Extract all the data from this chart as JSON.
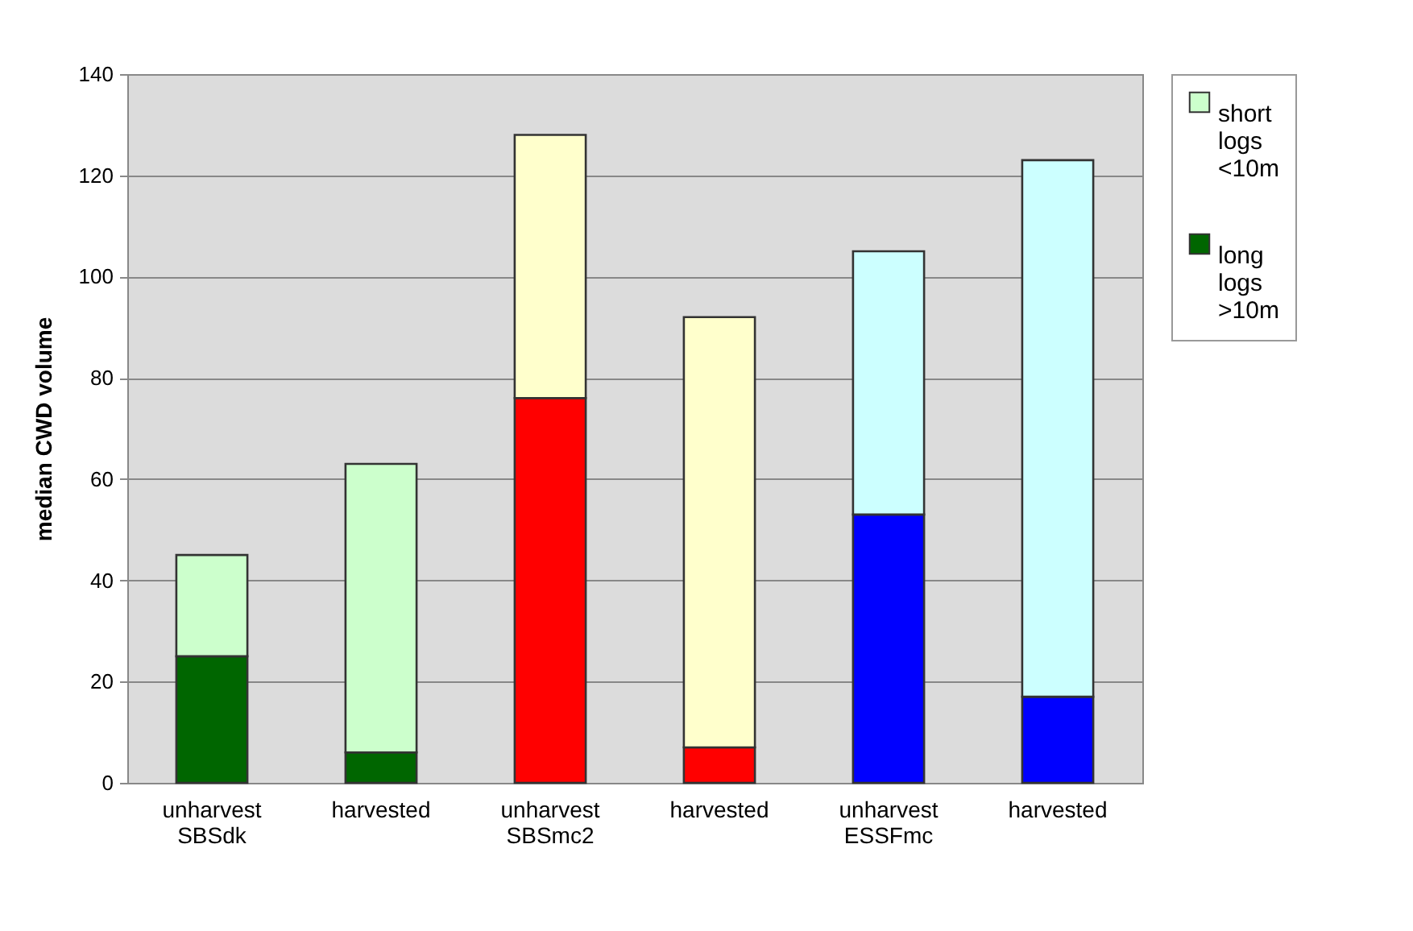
{
  "chart_data": {
    "type": "bar",
    "stacked": true,
    "ylabel": "median CWD volume",
    "categories": [
      "unharvest SBSdk",
      "harvested",
      "unharvest SBSmc2",
      "harvested",
      "unharvest ESSFmc",
      "harvested"
    ],
    "series": [
      {
        "name": "long logs >10m",
        "color": "#006600",
        "colors": [
          "#006600",
          "#006600",
          "#ff0000",
          "#ff0000",
          "#0000ff",
          "#0000ff"
        ],
        "values": [
          25,
          6,
          76,
          7,
          53,
          17
        ]
      },
      {
        "name": "short logs <10m",
        "color": "#ccffcc",
        "colors": [
          "#ccffcc",
          "#ccffcc",
          "#ffffcc",
          "#ffffcc",
          "#ccffff",
          "#ccffff"
        ],
        "values": [
          20,
          57,
          52,
          85,
          52,
          106
        ]
      }
    ],
    "ylim": [
      0,
      140
    ],
    "yticks": [
      0,
      20,
      40,
      60,
      80,
      100,
      120,
      140
    ],
    "grid": "y",
    "legend": "right"
  }
}
